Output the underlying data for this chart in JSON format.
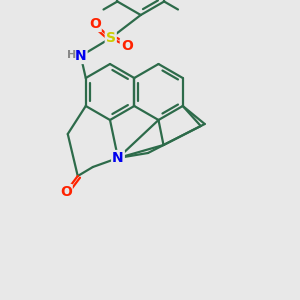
{
  "background_color": "#e8e8e8",
  "bond_color": "#2d6b4a",
  "bond_width": 1.6,
  "atom_colors": {
    "N": "#0000ee",
    "O": "#ff2200",
    "S": "#cccc00",
    "C": "#2d6b4a",
    "H": "#888888"
  },
  "figsize": [
    3.0,
    3.0
  ],
  "dpi": 100
}
